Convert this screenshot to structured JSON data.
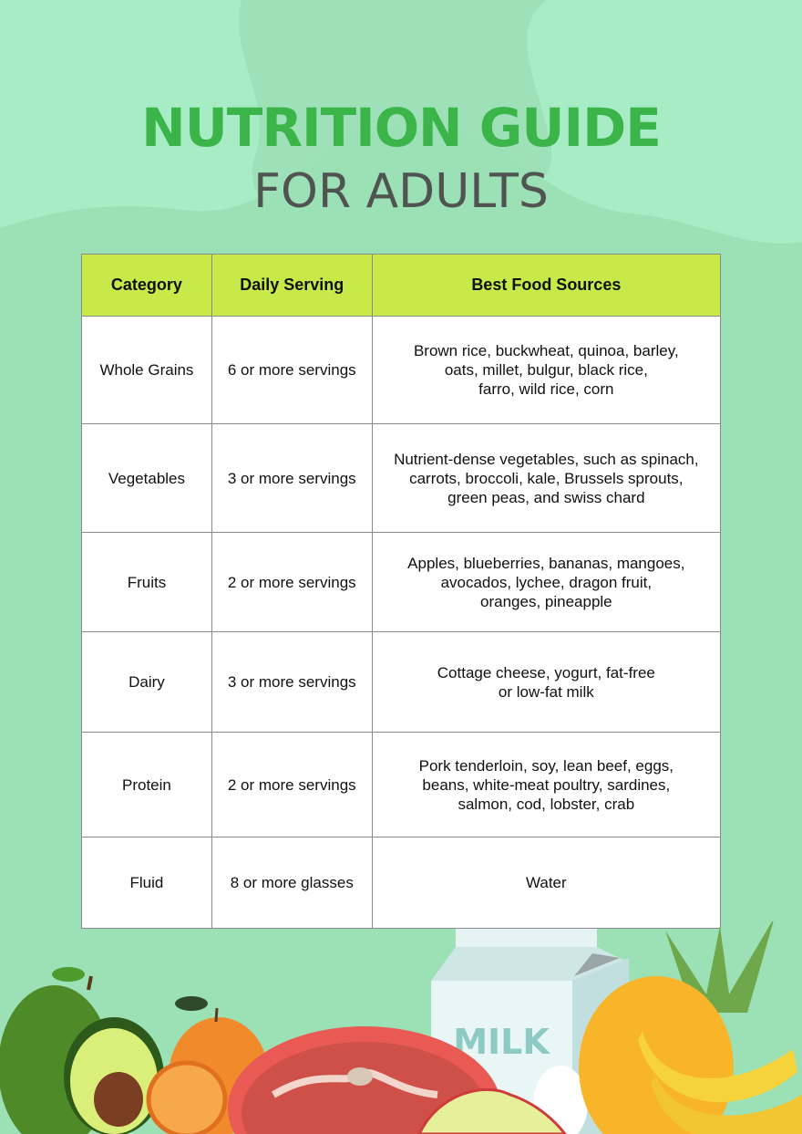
{
  "header": {
    "title": "NUTRITION GUIDE",
    "subtitle": "FOR ADULTS"
  },
  "colors": {
    "background": "#9ce0b6",
    "title": "#3bb54a",
    "subtitle": "#4f5451",
    "table_header": "#c8e94a"
  },
  "table": {
    "columns": [
      "Category",
      "Daily Serving",
      "Best Food Sources"
    ],
    "rows": [
      {
        "category": "Whole Grains",
        "serving": "6 or more servings",
        "sources": "Brown rice, buckwheat, quinoa, barley,\noats, millet, bulgur, black rice,\nfarro, wild rice, corn"
      },
      {
        "category": "Vegetables",
        "serving": "3 or more servings",
        "sources": "Nutrient-dense vegetables, such as spinach,\ncarrots, broccoli, kale, Brussels sprouts,\ngreen peas, and swiss chard"
      },
      {
        "category": "Fruits",
        "serving": "2 or more servings",
        "sources": "Apples, blueberries, bananas, mangoes,\navocados, lychee, dragon fruit,\noranges, pineapple"
      },
      {
        "category": "Dairy",
        "serving": "3 or more servings",
        "sources": "Cottage cheese, yogurt, fat-free\nor low-fat milk"
      },
      {
        "category": "Protein",
        "serving": "2 or more servings",
        "sources": "Pork tenderloin, soy, lean beef, eggs,\nbeans, white-meat poultry, sardines,\nsalmon, cod, lobster, crab"
      },
      {
        "category": "Fluid",
        "serving": "8 or more glasses",
        "sources": "Water"
      }
    ]
  },
  "illustration": {
    "milk_label": "MILK"
  }
}
